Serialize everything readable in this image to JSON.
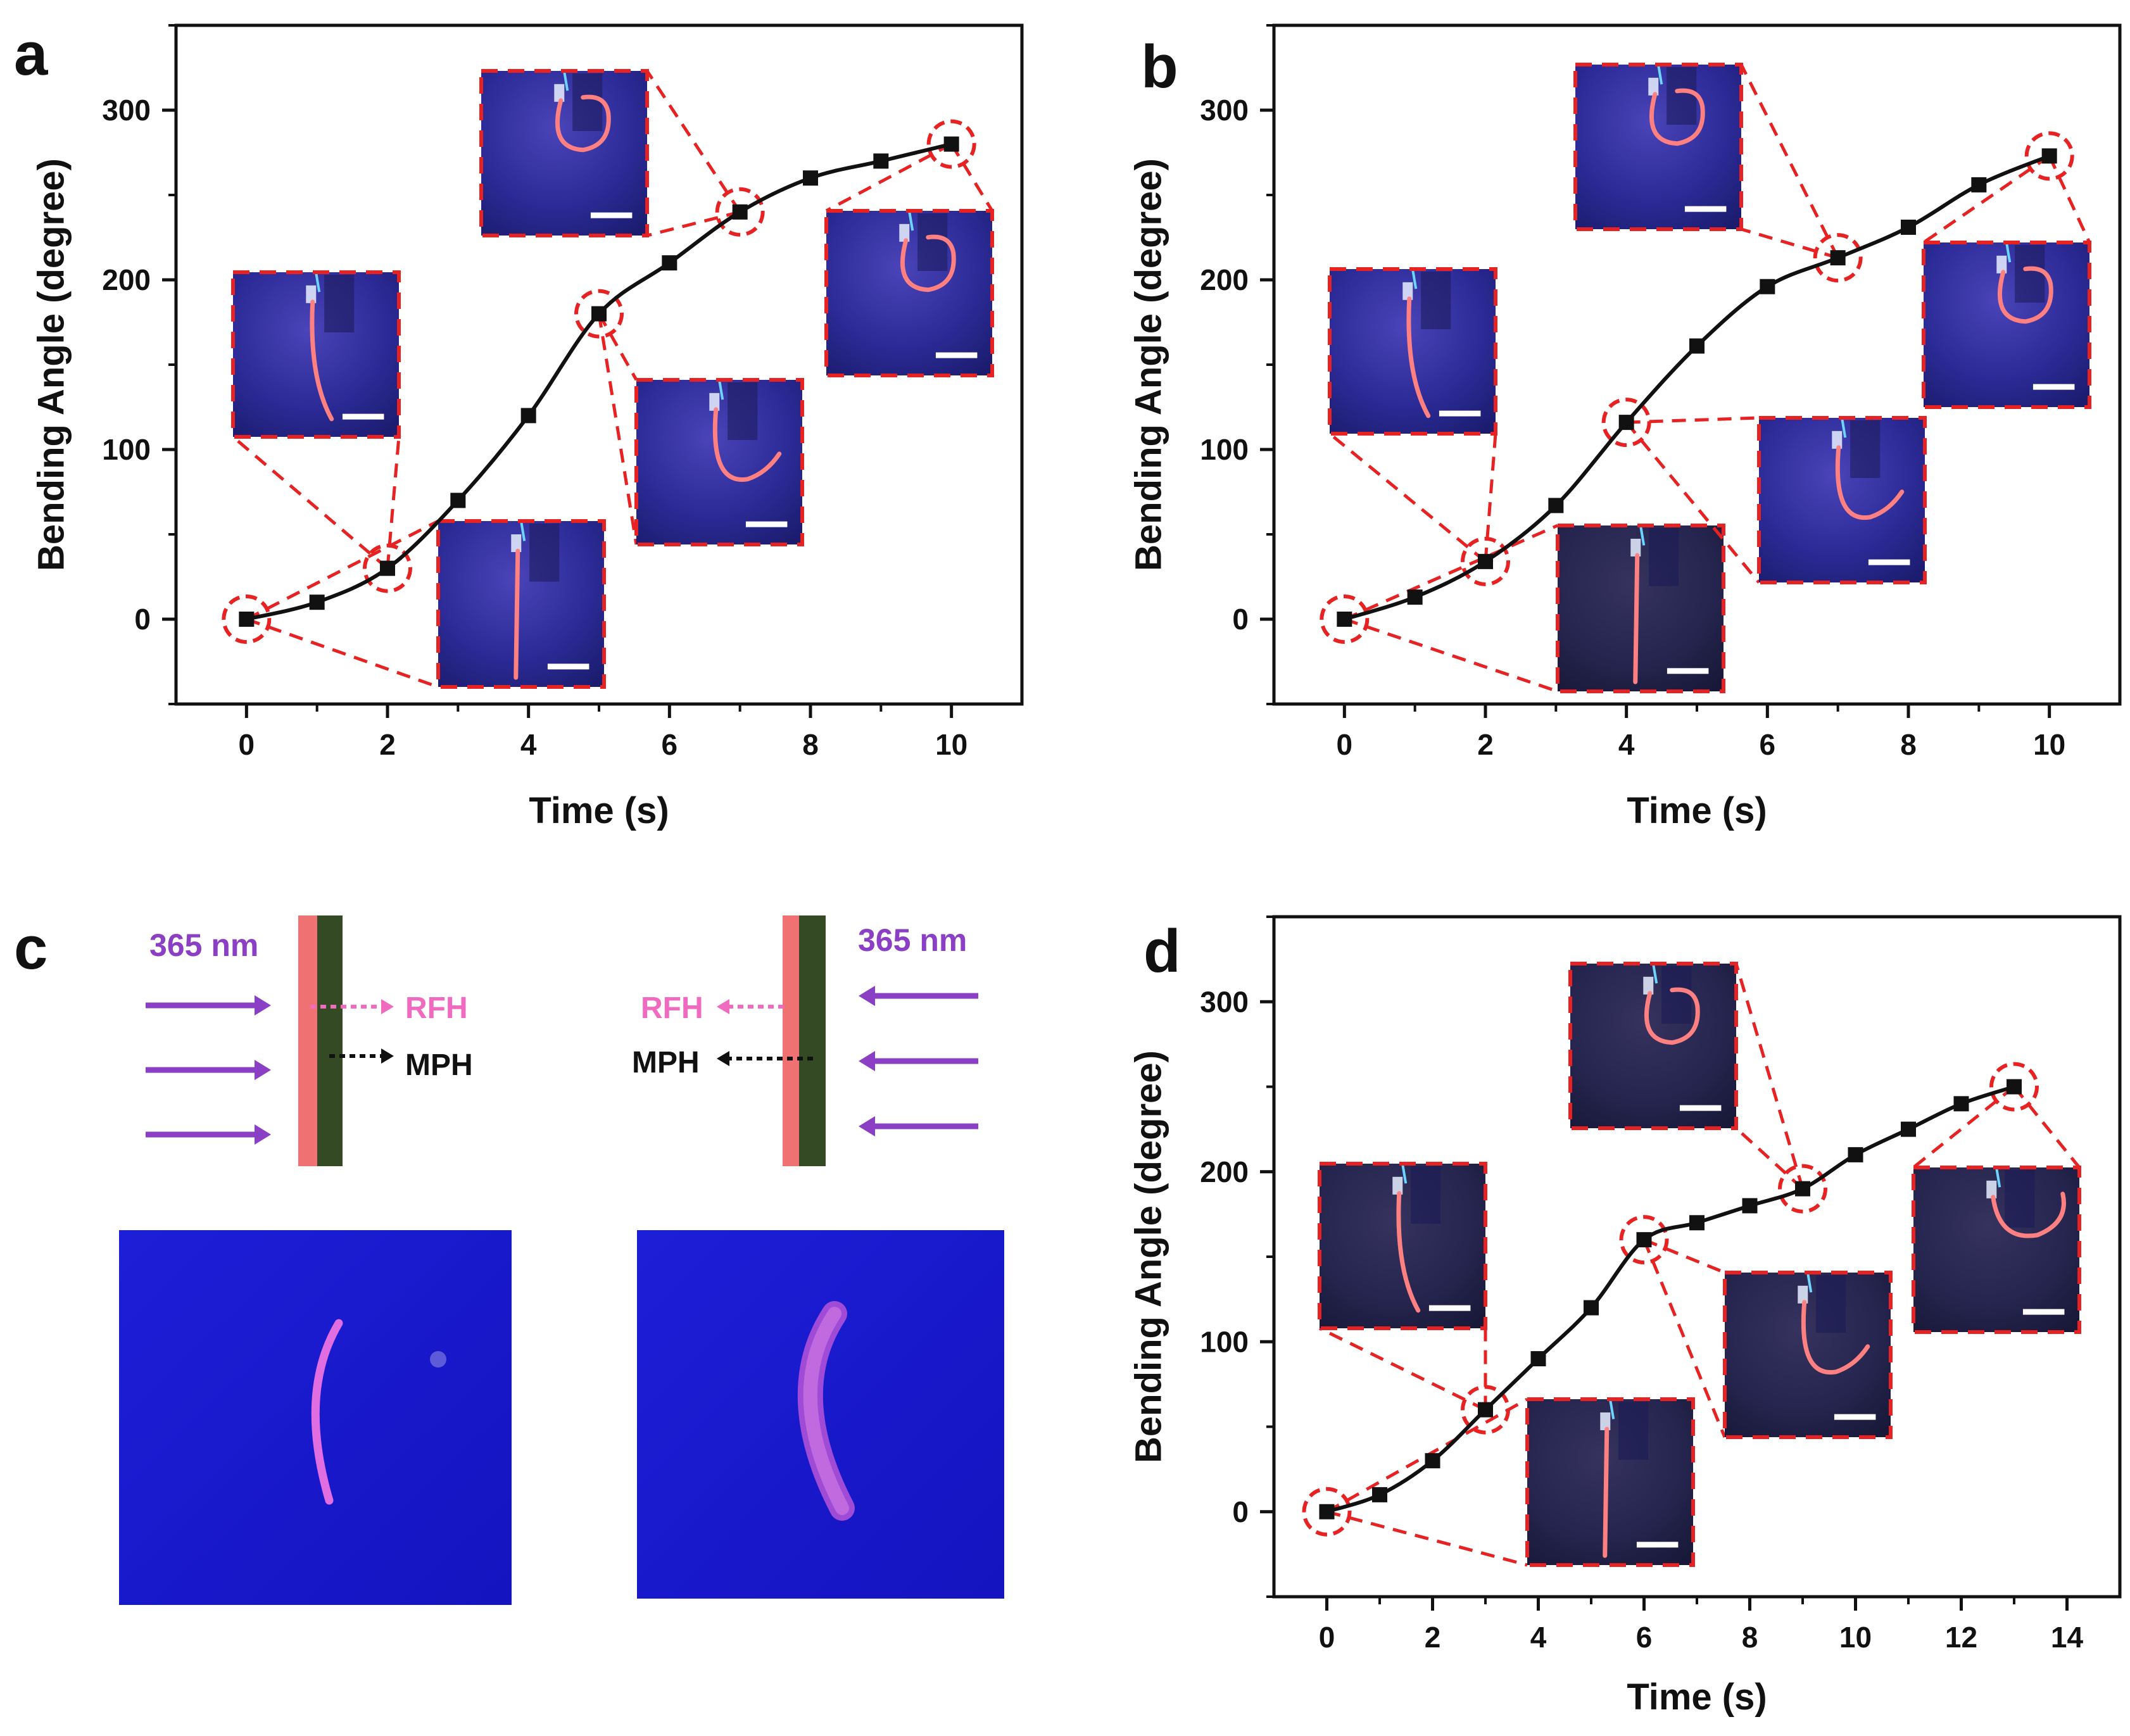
{
  "panels": {
    "a": "a",
    "b": "b",
    "c": "c",
    "d": "d"
  },
  "chart_data": [
    {
      "id": "a",
      "type": "line",
      "xlabel": "Time (s)",
      "ylabel": "Bending Angle (degree)",
      "xlim": [
        -1,
        11
      ],
      "ylim": [
        -50,
        350
      ],
      "xticks": [
        0,
        2,
        4,
        6,
        8,
        10
      ],
      "yticks": [
        0,
        100,
        200,
        300
      ],
      "x": [
        0,
        1,
        2,
        3,
        4,
        5,
        6,
        7,
        8,
        9,
        10
      ],
      "y": [
        0,
        10,
        30,
        70,
        120,
        180,
        210,
        240,
        260,
        270,
        280
      ],
      "highlighted_x": [
        0,
        2,
        5,
        7,
        10
      ],
      "color": "#111111"
    },
    {
      "id": "b",
      "type": "line",
      "xlabel": "Time (s)",
      "ylabel": "Bending Angle (degree)",
      "xlim": [
        -1,
        11
      ],
      "ylim": [
        -50,
        350
      ],
      "xticks": [
        0,
        2,
        4,
        6,
        8,
        10
      ],
      "yticks": [
        0,
        100,
        200,
        300
      ],
      "x": [
        0,
        1,
        2,
        3,
        4,
        5,
        6,
        7,
        8,
        9,
        10
      ],
      "y": [
        0,
        13,
        34,
        67,
        116,
        161,
        196,
        213,
        231,
        256,
        273
      ],
      "highlighted_x": [
        0,
        2,
        4,
        7,
        10
      ],
      "color": "#111111"
    },
    {
      "id": "d",
      "type": "line",
      "xlabel": "Time (s)",
      "ylabel": "Bending Angle (degree)",
      "xlim": [
        -1,
        15
      ],
      "ylim": [
        -50,
        350
      ],
      "xticks": [
        0,
        2,
        4,
        6,
        8,
        10,
        12,
        14
      ],
      "yticks": [
        0,
        100,
        200,
        300
      ],
      "x": [
        0,
        1,
        2,
        3,
        4,
        5,
        6,
        7,
        8,
        9,
        10,
        11,
        12,
        13
      ],
      "y": [
        0,
        10,
        30,
        60,
        90,
        120,
        160,
        170,
        180,
        190,
        210,
        225,
        240,
        250
      ],
      "highlighted_x": [
        0,
        3,
        6,
        9,
        13
      ],
      "color": "#111111"
    }
  ],
  "diagram_c": {
    "wavelength_left": "365 nm",
    "wavelength_right": "365 nm",
    "rfh_label": "RFH",
    "mph_label": "MPH",
    "colors": {
      "uv_arrow": "#8a3fc4",
      "rfh_layer": "#f07171",
      "mph_layer": "#334a24",
      "rfh_text": "#f06bbf",
      "photo_bg": "#1a1ad6",
      "fiber": "#e06ee0"
    }
  },
  "colors": {
    "highlight_dash": "#e62222",
    "photo_bg": "#2a2a8c",
    "fiber": "#ff8080",
    "scale_bar": "#ffffff"
  }
}
